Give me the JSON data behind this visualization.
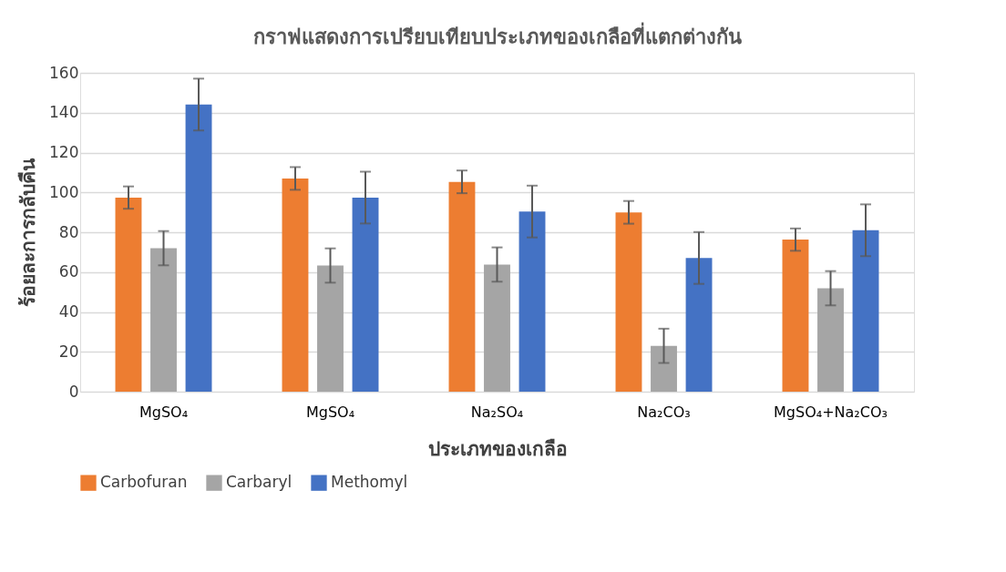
{
  "chart_data": {
    "type": "bar",
    "title": "กราฟแสดงการเปรียบเทียบประเภทของเกลือที่แตกต่างกัน",
    "xlabel": "ประเภทของเกลือ",
    "ylabel": "ร้อยละการกลับคืน",
    "categories": [
      "MgSO₄",
      "MgSO₄",
      "Na₂SO₄",
      "Na₂CO₃",
      "MgSO₄+Na₂CO₃"
    ],
    "series": [
      {
        "name": "Carbofuran",
        "color": "#ed7d31",
        "values": [
          97.4,
          107,
          105.3,
          90,
          76.3
        ],
        "errors": [
          5.6,
          5.7,
          5.7,
          5.7,
          5.6
        ]
      },
      {
        "name": "Carbaryl",
        "color": "#a5a5a5",
        "values": [
          72,
          63.3,
          63.8,
          23,
          51.9
        ],
        "errors": [
          8.6,
          8.6,
          8.6,
          8.6,
          8.6
        ]
      },
      {
        "name": "Methomyl",
        "color": "#4472c4",
        "values": [
          144.1,
          97.4,
          90.4,
          67.1,
          81
        ],
        "errors": [
          13,
          13,
          13,
          13,
          13
        ]
      }
    ],
    "ylim": [
      0,
      160
    ],
    "yticks": [
      0,
      20,
      40,
      60,
      80,
      100,
      120,
      140,
      160
    ],
    "grid": "y",
    "legend": "bottom"
  }
}
